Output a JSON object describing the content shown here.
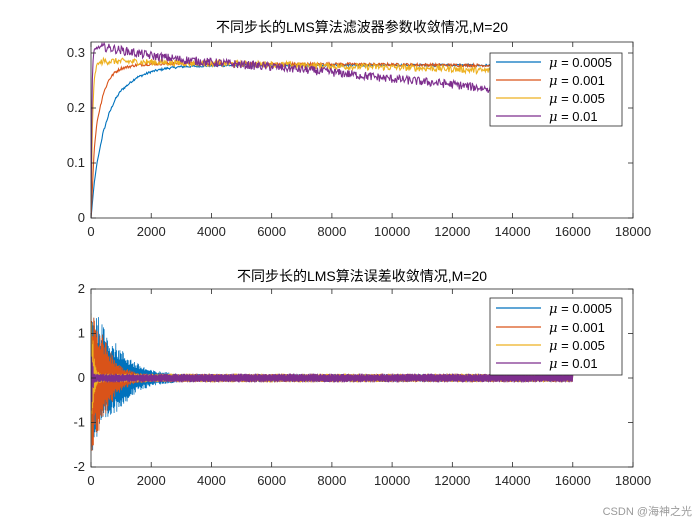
{
  "watermark": "CSDN @海神之光",
  "colors": {
    "series": [
      "#0072BD",
      "#D95319",
      "#EDB120",
      "#7E2F8E"
    ],
    "axis": "#262626",
    "background": "#ffffff"
  },
  "chart_data": [
    {
      "type": "line",
      "title": "不同步长的LMS算法滤波器参数收敛情况,M=20",
      "xlabel": "",
      "ylabel": "",
      "xlim": [
        0,
        18000
      ],
      "ylim": [
        0,
        0.32
      ],
      "xticks": [
        0,
        2000,
        4000,
        6000,
        8000,
        10000,
        12000,
        14000,
        16000,
        18000
      ],
      "xtick_labels": [
        "0",
        "2000",
        "4000",
        "6000",
        "8000",
        "10000",
        "12000",
        "14000",
        "16000",
        "18000"
      ],
      "yticks": [
        0,
        0.1,
        0.2,
        0.3
      ],
      "ytick_labels": [
        "0",
        "0.1",
        "0.2",
        "0.3"
      ],
      "grid": false,
      "legend_position": "top-right",
      "series": [
        {
          "name": "μ = 0.0005",
          "symbol": "μ",
          "value_text": " = 0.0005",
          "x": [
            0,
            100,
            200,
            400,
            600,
            800,
            1000,
            1500,
            2000,
            2500,
            3000,
            4000,
            6000,
            8000,
            10000,
            12000,
            14000,
            16000
          ],
          "y": [
            0,
            0.06,
            0.1,
            0.155,
            0.19,
            0.215,
            0.232,
            0.255,
            0.266,
            0.272,
            0.275,
            0.277,
            0.278,
            0.278,
            0.278,
            0.278,
            0.277,
            0.277
          ],
          "noise": 0.002
        },
        {
          "name": "μ = 0.001",
          "symbol": "μ",
          "value_text": " = 0.001",
          "x": [
            0,
            100,
            200,
            400,
            600,
            800,
            1000,
            1500,
            2000,
            3000,
            4000,
            6000,
            8000,
            10000,
            12000,
            14000,
            16000
          ],
          "y": [
            0,
            0.12,
            0.175,
            0.225,
            0.252,
            0.265,
            0.272,
            0.278,
            0.28,
            0.281,
            0.281,
            0.28,
            0.28,
            0.279,
            0.278,
            0.277,
            0.277
          ],
          "noise": 0.0025
        },
        {
          "name": "μ = 0.005",
          "symbol": "μ",
          "value_text": " = 0.005",
          "x": [
            0,
            50,
            100,
            200,
            400,
            800,
            1500,
            3000,
            6000,
            8000,
            10000,
            12000,
            13000,
            14000,
            15000,
            16000
          ],
          "y": [
            0,
            0.18,
            0.25,
            0.28,
            0.285,
            0.285,
            0.284,
            0.282,
            0.279,
            0.276,
            0.274,
            0.271,
            0.268,
            0.268,
            0.27,
            0.27
          ],
          "noise": 0.006
        },
        {
          "name": "μ = 0.01",
          "symbol": "μ",
          "value_text": " = 0.01",
          "x": [
            0,
            30,
            60,
            100,
            200,
            500,
            1000,
            2000,
            3000,
            4000,
            6000,
            8000,
            10000,
            12000,
            13000,
            14000,
            15000,
            16000
          ],
          "y": [
            0,
            0.22,
            0.28,
            0.305,
            0.31,
            0.31,
            0.305,
            0.295,
            0.288,
            0.283,
            0.275,
            0.265,
            0.253,
            0.243,
            0.236,
            0.232,
            0.23,
            0.228
          ],
          "noise": 0.008
        }
      ]
    },
    {
      "type": "line",
      "title": "不同步长的LMS算法误差收敛情况,M=20",
      "xlabel": "",
      "ylabel": "",
      "xlim": [
        0,
        18000
      ],
      "ylim": [
        -2,
        2
      ],
      "xticks": [
        0,
        2000,
        4000,
        6000,
        8000,
        10000,
        12000,
        14000,
        16000,
        18000
      ],
      "xtick_labels": [
        "0",
        "2000",
        "4000",
        "6000",
        "8000",
        "10000",
        "12000",
        "14000",
        "16000",
        "18000"
      ],
      "yticks": [
        -2,
        -1,
        0,
        1,
        2
      ],
      "ytick_labels": [
        "-2",
        "-1",
        "0",
        "1",
        "2"
      ],
      "grid": false,
      "legend_position": "top-right",
      "series": [
        {
          "name": "μ = 0.0005",
          "symbol": "μ",
          "value_text": " = 0.0005",
          "envelope": {
            "x": [
              0,
              200,
              500,
              1000,
              1500,
              2000,
              3000,
              16000
            ],
            "amp": [
              1.8,
              1.45,
              1.05,
              0.65,
              0.35,
              0.18,
              0.09,
              0.09
            ]
          }
        },
        {
          "name": "μ = 0.001",
          "symbol": "μ",
          "value_text": " = 0.001",
          "envelope": {
            "x": [
              0,
              200,
              500,
              800,
              1000,
              1500,
              2000,
              16000
            ],
            "amp": [
              1.75,
              1.3,
              0.8,
              0.45,
              0.3,
              0.12,
              0.09,
              0.09
            ]
          }
        },
        {
          "name": "μ = 0.005",
          "symbol": "μ",
          "value_text": " = 0.005",
          "envelope": {
            "x": [
              0,
              100,
              200,
              400,
              16000
            ],
            "amp": [
              1.6,
              0.5,
              0.15,
              0.1,
              0.1
            ]
          }
        },
        {
          "name": "μ = 0.01",
          "symbol": "μ",
          "value_text": " = 0.01",
          "envelope": {
            "x": [
              0,
              50,
              100,
              200,
              16000
            ],
            "amp": [
              1.2,
              0.4,
              0.12,
              0.1,
              0.1
            ]
          }
        }
      ]
    }
  ]
}
